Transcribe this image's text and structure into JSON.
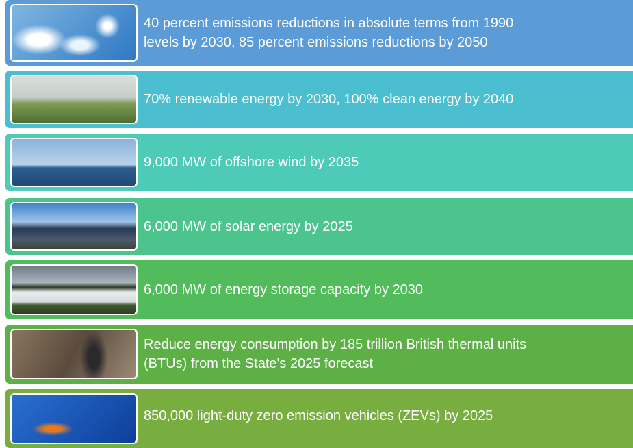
{
  "items": [
    {
      "lines": [
        "40 percent emissions reductions in absolute terms from 1990",
        "levels by 2030, 85 percent emissions reductions by 2050"
      ]
    },
    {
      "lines": [
        "70% renewable energy by 2030, 100% clean energy by 2040"
      ]
    },
    {
      "lines": [
        "9,000 MW of offshore wind by 2035"
      ]
    },
    {
      "lines": [
        "6,000 MW of solar energy by 2025"
      ]
    },
    {
      "lines": [
        "6,000 MW of energy storage capacity by 2030"
      ]
    },
    {
      "lines": [
        "Reduce energy consumption by 185 trillion British thermal units",
        "(BTUs) from the State's 2025 forecast"
      ]
    },
    {
      "lines": [
        "850,000 light-duty zero emission vehicles (ZEVs) by 2025"
      ]
    }
  ]
}
